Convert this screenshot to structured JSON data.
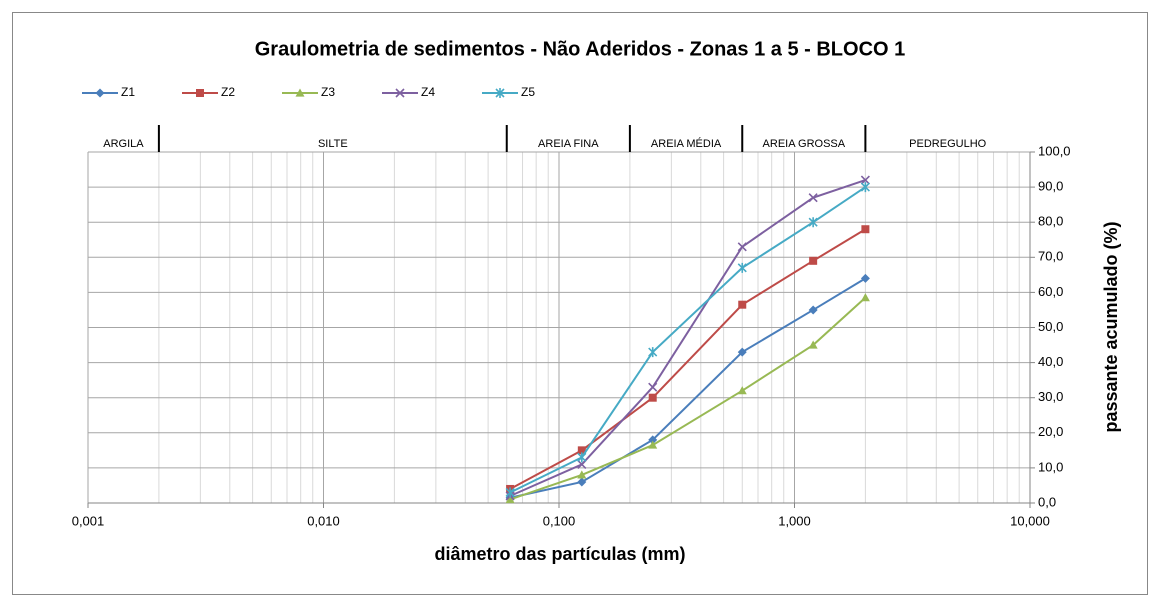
{
  "chart_data": {
    "type": "line",
    "title": "Graulometria de sedimentos - Não Aderidos - Zonas 1 a 5 - BLOCO 1",
    "x_label": "diâmetro das partículas  (mm)",
    "y_label": "passante acumulado (%)",
    "x": [
      0.062,
      0.125,
      0.25,
      0.6,
      1.2,
      2.0
    ],
    "series": [
      {
        "name": "Z1",
        "color": "#4a7ebb",
        "marker": "diamond",
        "values": [
          1.5,
          6,
          18,
          43,
          55,
          64
        ]
      },
      {
        "name": "Z2",
        "color": "#be4b48",
        "marker": "square",
        "values": [
          4,
          15,
          30,
          56.5,
          69,
          78
        ]
      },
      {
        "name": "Z3",
        "color": "#98b954",
        "marker": "triangle",
        "values": [
          1,
          8,
          16.5,
          32,
          45,
          58.5
        ]
      },
      {
        "name": "Z4",
        "color": "#7d60a0",
        "marker": "x",
        "values": [
          2,
          11,
          33,
          73,
          87,
          92
        ]
      },
      {
        "name": "Z5",
        "color": "#46aac5",
        "marker": "star",
        "values": [
          3,
          13,
          43,
          67,
          80,
          90
        ]
      }
    ],
    "xscale": "log",
    "xlim": [
      0.001,
      10
    ],
    "xticks": [
      {
        "value": 0.001,
        "label": "0,001"
      },
      {
        "value": 0.01,
        "label": "0,010"
      },
      {
        "value": 0.1,
        "label": "0,100"
      },
      {
        "value": 1,
        "label": "1,000"
      },
      {
        "value": 10,
        "label": "10,000"
      }
    ],
    "ylim": [
      0,
      100
    ],
    "yticks": [
      {
        "value": 0,
        "label": "0,0"
      },
      {
        "value": 10,
        "label": "10,0"
      },
      {
        "value": 20,
        "label": "20,0"
      },
      {
        "value": 30,
        "label": "30,0"
      },
      {
        "value": 40,
        "label": "40,0"
      },
      {
        "value": 50,
        "label": "50,0"
      },
      {
        "value": 60,
        "label": "60,0"
      },
      {
        "value": 70,
        "label": "70,0"
      },
      {
        "value": 80,
        "label": "80,0"
      },
      {
        "value": 90,
        "label": "90,0"
      },
      {
        "value": 100,
        "label": "100,0"
      }
    ],
    "y_axis_side": "right",
    "grid": true,
    "minor_grid": true,
    "legend": "top-left",
    "zone_labels": [
      "ARGILA",
      "SILTE",
      "AREIA FINA",
      "AREIA MÉDIA",
      "AREIA GROSSA",
      "PEDREGULHO"
    ],
    "zone_bounds": [
      0.002,
      0.06,
      0.2,
      0.6,
      2.0
    ]
  }
}
